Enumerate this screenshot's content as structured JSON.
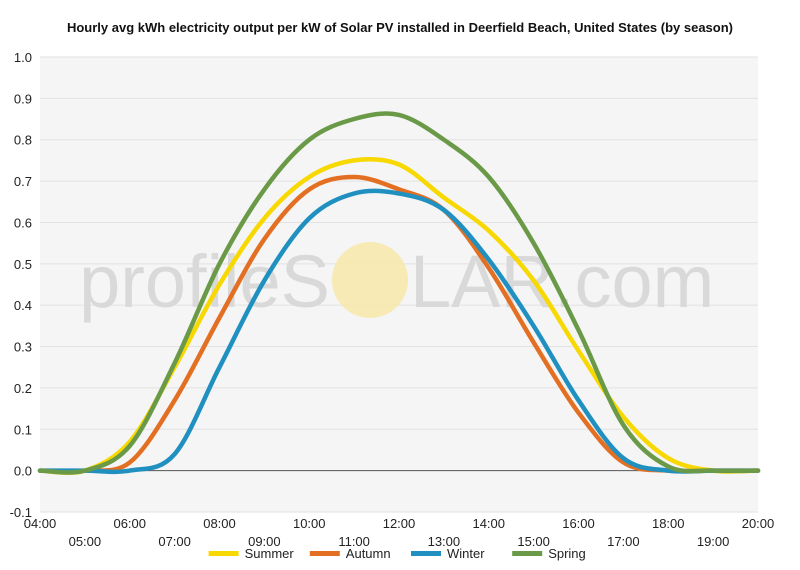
{
  "chart_data": {
    "type": "line",
    "title": "Hourly avg kWh electricity output per kW of Solar PV installed in Deerfield Beach, United States (by season)",
    "watermark": {
      "text_left": "profileS",
      "text_right": "LAR.com",
      "sun_color": "#f7e7a8"
    },
    "xlabel": "",
    "ylabel": "",
    "ylim": [
      -0.1,
      1.0
    ],
    "yticks": [
      -0.1,
      0.0,
      0.1,
      0.2,
      0.3,
      0.4,
      0.5,
      0.6,
      0.7,
      0.8,
      0.9,
      1.0
    ],
    "ytick_labels": [
      "-0.1",
      "0.0",
      "0.1",
      "0.2",
      "0.3",
      "0.4",
      "0.5",
      "0.6",
      "0.7",
      "0.8",
      "0.9",
      "1.0"
    ],
    "x": [
      4,
      5,
      6,
      7,
      8,
      9,
      10,
      11,
      12,
      13,
      14,
      15,
      16,
      17,
      18,
      19,
      20
    ],
    "xtick_labels": [
      "04:00",
      "05:00",
      "06:00",
      "07:00",
      "08:00",
      "09:00",
      "10:00",
      "11:00",
      "12:00",
      "13:00",
      "14:00",
      "15:00",
      "16:00",
      "17:00",
      "18:00",
      "19:00",
      "20:00"
    ],
    "grid": true,
    "legend_position": "bottom",
    "series": [
      {
        "name": "Summer",
        "color": "#f7d800",
        "values": [
          0.0,
          0.0,
          0.07,
          0.25,
          0.45,
          0.61,
          0.71,
          0.75,
          0.74,
          0.66,
          0.58,
          0.46,
          0.29,
          0.13,
          0.03,
          0.0,
          0.0
        ]
      },
      {
        "name": "Autumn",
        "color": "#e36f22",
        "values": [
          0.0,
          0.0,
          0.02,
          0.17,
          0.37,
          0.56,
          0.68,
          0.71,
          0.68,
          0.63,
          0.49,
          0.31,
          0.14,
          0.02,
          0.0,
          0.0,
          0.0
        ]
      },
      {
        "name": "Winter",
        "color": "#2090c0",
        "values": [
          0.0,
          0.0,
          0.0,
          0.04,
          0.25,
          0.46,
          0.61,
          0.67,
          0.67,
          0.63,
          0.51,
          0.35,
          0.17,
          0.03,
          0.0,
          0.0,
          0.0
        ]
      },
      {
        "name": "Spring",
        "color": "#6a9a48",
        "values": [
          0.0,
          0.0,
          0.06,
          0.26,
          0.5,
          0.68,
          0.8,
          0.85,
          0.86,
          0.8,
          0.71,
          0.55,
          0.34,
          0.11,
          0.01,
          0.0,
          0.0
        ]
      }
    ]
  }
}
